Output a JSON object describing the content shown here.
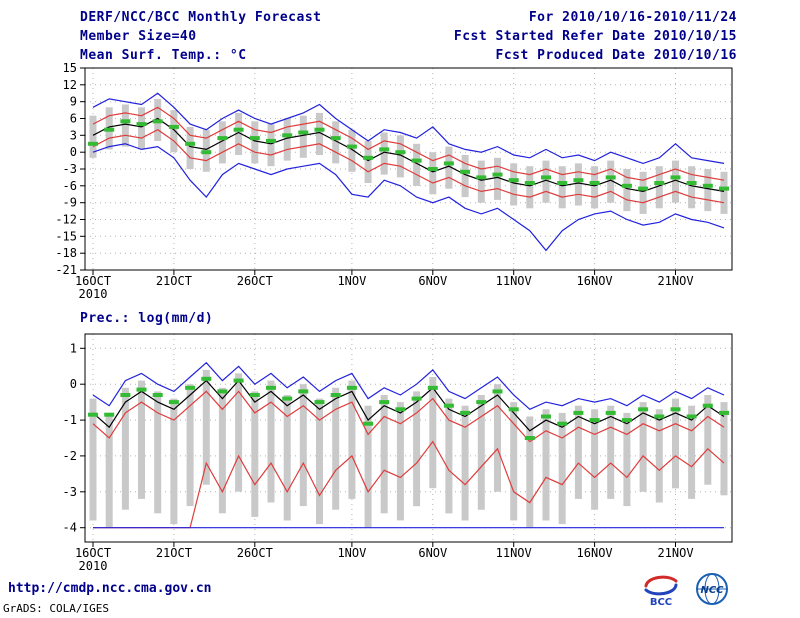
{
  "header": {
    "title": "DERF/NCC/BCC Monthly Forecast",
    "member_size": "Member Size=40",
    "for_range": "For 2010/10/16-2010/11/24",
    "fcst_started": "Fcst Started Refer Date 2010/10/15",
    "fcst_produced": "Fcst Produced Date 2010/10/16"
  },
  "footer": {
    "url": "http://cmdp.ncc.cma.gov.cn",
    "credit": "GrADS: COLA/IGES",
    "logo_bcc": "BCC",
    "logo_ncc": "NCC"
  },
  "colors": {
    "text": "#00008b",
    "frame": "#000000",
    "grid": "#b3b3b3",
    "bar": "#c9c9c9",
    "blue": "#2222dd",
    "red": "#e03c3c",
    "black": "#000000",
    "green": "#33bb33"
  },
  "chart_data": [
    {
      "type": "line",
      "title": "Mean Surf. Temp.: °C",
      "n_points": 40,
      "ylim": [
        -21,
        15
      ],
      "yticks": [
        15,
        12,
        9,
        6,
        3,
        0,
        -3,
        -6,
        -9,
        -12,
        -15,
        -18,
        -21
      ],
      "x_tick_labels": [
        "16OCT",
        "21OCT",
        "26OCT",
        "1NOV",
        "6NOV",
        "11NOV",
        "16NOV",
        "21NOV"
      ],
      "x_tick_indices": [
        0,
        5,
        10,
        16,
        21,
        26,
        31,
        36
      ],
      "x_year_label": "2010",
      "grid": true,
      "series": [
        {
          "name": "ensemble-max",
          "color": "#2222dd",
          "values": [
            8.0,
            9.5,
            9.0,
            8.5,
            10.5,
            8.0,
            5.0,
            4.0,
            6.0,
            7.5,
            6.0,
            5.0,
            6.0,
            7.0,
            8.5,
            6.0,
            4.0,
            2.0,
            4.0,
            3.5,
            2.5,
            4.5,
            1.5,
            0.5,
            0.0,
            1.0,
            -0.5,
            -1.0,
            0.5,
            -1.0,
            -0.5,
            -1.5,
            0.0,
            -1.0,
            -2.0,
            -1.0,
            1.5,
            -1.0,
            -1.5,
            -2.0
          ]
        },
        {
          "name": "upper-quartile",
          "color": "#e03c3c",
          "values": [
            5.0,
            6.5,
            7.0,
            6.5,
            8.0,
            6.0,
            3.0,
            2.5,
            4.0,
            5.5,
            4.0,
            3.5,
            4.5,
            5.0,
            5.5,
            4.0,
            2.5,
            0.5,
            2.0,
            1.5,
            0.0,
            -1.5,
            -0.5,
            -2.0,
            -3.0,
            -2.5,
            -3.5,
            -4.0,
            -3.0,
            -4.0,
            -3.5,
            -4.0,
            -3.0,
            -4.5,
            -5.0,
            -4.0,
            -3.0,
            -4.0,
            -4.5,
            -5.0
          ]
        },
        {
          "name": "ensemble-mean",
          "color": "#000000",
          "values": [
            3.0,
            4.5,
            5.0,
            4.5,
            6.0,
            4.0,
            1.0,
            0.5,
            2.0,
            3.5,
            2.0,
            1.5,
            2.5,
            3.0,
            3.5,
            2.0,
            0.5,
            -1.5,
            0.0,
            -0.5,
            -2.0,
            -3.5,
            -2.5,
            -4.0,
            -5.0,
            -4.5,
            -5.5,
            -6.0,
            -5.0,
            -6.0,
            -5.5,
            -6.0,
            -5.0,
            -6.5,
            -7.0,
            -6.0,
            -5.0,
            -6.0,
            -6.5,
            -7.0
          ]
        },
        {
          "name": "lower-quartile",
          "color": "#e03c3c",
          "values": [
            1.0,
            2.5,
            3.0,
            2.5,
            4.0,
            2.0,
            -1.0,
            -1.5,
            0.0,
            1.5,
            0.0,
            -0.5,
            0.5,
            1.0,
            1.5,
            0.0,
            -1.5,
            -3.5,
            -2.0,
            -2.5,
            -4.0,
            -5.5,
            -4.5,
            -6.0,
            -7.0,
            -6.5,
            -7.5,
            -8.0,
            -7.0,
            -8.0,
            -7.5,
            -8.0,
            -7.0,
            -8.5,
            -9.0,
            -8.0,
            -7.0,
            -8.0,
            -8.5,
            -9.0
          ]
        },
        {
          "name": "ensemble-min",
          "color": "#2222dd",
          "values": [
            0.0,
            1.0,
            1.5,
            0.5,
            1.0,
            -1.0,
            -5.0,
            -8.0,
            -4.0,
            -2.0,
            -3.0,
            -4.0,
            -3.0,
            -2.5,
            -2.0,
            -4.0,
            -7.5,
            -8.0,
            -5.0,
            -6.0,
            -8.0,
            -9.0,
            -8.0,
            -10.0,
            -11.0,
            -10.0,
            -12.0,
            -14.0,
            -17.5,
            -14.0,
            -12.0,
            -11.0,
            -10.5,
            -12.0,
            -13.0,
            -12.5,
            -11.0,
            -12.0,
            -12.5,
            -13.5
          ]
        }
      ],
      "bars": {
        "name": "ensemble-spread",
        "color": "#c9c9c9",
        "top": [
          6.5,
          8.0,
          8.5,
          8.0,
          9.5,
          7.5,
          4.5,
          4.0,
          5.5,
          7.0,
          5.5,
          5.0,
          6.0,
          6.5,
          7.0,
          5.5,
          4.0,
          2.0,
          3.5,
          3.0,
          1.5,
          0.0,
          1.0,
          -0.5,
          -1.5,
          -1.0,
          -2.0,
          -2.5,
          -1.5,
          -2.5,
          -2.0,
          -2.5,
          -1.5,
          -3.0,
          -3.5,
          -2.5,
          -1.5,
          -2.5,
          -3.0,
          -3.5
        ],
        "bottom": [
          -1.0,
          0.5,
          1.0,
          0.5,
          2.0,
          0.0,
          -3.0,
          -3.5,
          -2.0,
          -0.5,
          -2.0,
          -2.5,
          -1.5,
          -1.0,
          -0.5,
          -2.0,
          -3.5,
          -5.5,
          -4.0,
          -4.5,
          -6.0,
          -7.5,
          -6.5,
          -8.0,
          -9.0,
          -8.5,
          -9.5,
          -10.0,
          -9.0,
          -10.0,
          -9.5,
          -10.0,
          -9.0,
          -10.5,
          -11.0,
          -10.0,
          -9.0,
          -10.0,
          -10.5,
          -11.0
        ]
      },
      "obs": {
        "name": "observation",
        "color": "#33bb33",
        "values": [
          1.5,
          4.0,
          5.5,
          5.0,
          5.5,
          4.5,
          1.5,
          0.0,
          2.5,
          4.0,
          2.5,
          2.0,
          3.0,
          3.5,
          4.0,
          2.5,
          1.0,
          -1.0,
          0.5,
          0.0,
          -1.5,
          -3.0,
          -2.0,
          -3.5,
          -4.5,
          -4.0,
          -5.0,
          -5.5,
          -4.5,
          -5.5,
          -5.0,
          -5.5,
          -4.5,
          -6.0,
          -6.5,
          -5.5,
          -4.5,
          -5.5,
          -6.0,
          -6.5
        ]
      }
    },
    {
      "type": "line",
      "title": "Prec.: log(mm/d)",
      "n_points": 40,
      "ylim": [
        -4.4,
        1.4
      ],
      "yticks": [
        1,
        0,
        -1,
        -2,
        -3,
        -4
      ],
      "x_tick_labels": [
        "16OCT",
        "21OCT",
        "26OCT",
        "1NOV",
        "6NOV",
        "11NOV",
        "16NOV",
        "21NOV"
      ],
      "x_tick_indices": [
        0,
        5,
        10,
        16,
        21,
        26,
        31,
        36
      ],
      "x_year_label": "2010",
      "grid": true,
      "series": [
        {
          "name": "ensemble-max",
          "color": "#2222dd",
          "values": [
            -0.3,
            -0.6,
            0.1,
            0.3,
            0.0,
            -0.2,
            0.2,
            0.6,
            0.1,
            0.5,
            0.0,
            0.3,
            -0.1,
            0.2,
            -0.2,
            0.1,
            0.3,
            -0.4,
            -0.1,
            -0.3,
            0.0,
            0.4,
            -0.2,
            -0.4,
            -0.1,
            0.2,
            -0.3,
            -0.7,
            -0.5,
            -0.6,
            -0.4,
            -0.5,
            -0.4,
            -0.6,
            -0.3,
            -0.5,
            -0.2,
            -0.4,
            -0.1,
            -0.3
          ]
        },
        {
          "name": "ensemble-mean",
          "color": "#000000",
          "values": [
            -0.8,
            -1.2,
            -0.5,
            -0.2,
            -0.5,
            -0.7,
            -0.3,
            0.1,
            -0.4,
            0.1,
            -0.5,
            -0.2,
            -0.6,
            -0.3,
            -0.7,
            -0.4,
            -0.2,
            -1.0,
            -0.6,
            -0.8,
            -0.5,
            -0.1,
            -0.7,
            -0.9,
            -0.6,
            -0.3,
            -0.8,
            -1.3,
            -1.0,
            -1.2,
            -0.9,
            -1.1,
            -0.9,
            -1.1,
            -0.8,
            -1.0,
            -0.8,
            -1.0,
            -0.6,
            -0.9
          ]
        },
        {
          "name": "upper-quartile",
          "color": "#e03c3c",
          "values": [
            -1.1,
            -1.5,
            -0.8,
            -0.5,
            -0.8,
            -1.0,
            -0.6,
            -0.2,
            -0.7,
            -0.2,
            -0.8,
            -0.5,
            -0.9,
            -0.6,
            -1.0,
            -0.7,
            -0.5,
            -1.4,
            -0.9,
            -1.1,
            -0.8,
            -0.4,
            -1.0,
            -1.2,
            -0.9,
            -0.6,
            -1.1,
            -1.6,
            -1.3,
            -1.5,
            -1.2,
            -1.4,
            -1.2,
            -1.4,
            -1.1,
            -1.3,
            -1.1,
            -1.3,
            -0.9,
            -1.2
          ]
        },
        {
          "name": "lower-quartile",
          "color": "#e03c3c",
          "values": [
            -4.0,
            -4.0,
            -4.0,
            -4.0,
            -4.0,
            -4.0,
            -4.0,
            -2.2,
            -3.0,
            -2.0,
            -2.8,
            -2.2,
            -3.0,
            -2.2,
            -3.1,
            -2.4,
            -2.0,
            -3.0,
            -2.4,
            -2.6,
            -2.2,
            -1.6,
            -2.4,
            -2.8,
            -2.3,
            -1.8,
            -3.0,
            -3.3,
            -2.6,
            -2.8,
            -2.2,
            -2.6,
            -2.2,
            -2.6,
            -2.0,
            -2.4,
            -2.0,
            -2.3,
            -1.8,
            -2.2
          ]
        },
        {
          "name": "ensemble-min",
          "color": "#2222dd",
          "values": [
            -4.0,
            -4.0,
            -4.0,
            -4.0,
            -4.0,
            -4.0,
            -4.0,
            -4.0,
            -4.0,
            -4.0,
            -4.0,
            -4.0,
            -4.0,
            -4.0,
            -4.0,
            -4.0,
            -4.0,
            -4.0,
            -4.0,
            -4.0,
            -4.0,
            -4.0,
            -4.0,
            -4.0,
            -4.0,
            -4.0,
            -4.0,
            -4.0,
            -4.0,
            -4.0,
            -4.0,
            -4.0,
            -4.0,
            -4.0,
            -4.0,
            -4.0,
            -4.0,
            -4.0,
            -4.0,
            -4.0
          ]
        }
      ],
      "bars": {
        "name": "ensemble-spread",
        "color": "#c9c9c9",
        "top": [
          -0.4,
          -0.8,
          -0.1,
          0.1,
          -0.2,
          -0.4,
          0.0,
          0.4,
          -0.1,
          0.3,
          -0.2,
          0.1,
          -0.3,
          0.0,
          -0.4,
          -0.1,
          0.1,
          -0.6,
          -0.3,
          -0.5,
          -0.2,
          0.2,
          -0.4,
          -0.6,
          -0.3,
          0.0,
          -0.5,
          -0.9,
          -0.7,
          -0.8,
          -0.6,
          -0.7,
          -0.6,
          -0.8,
          -0.5,
          -0.7,
          -0.4,
          -0.6,
          -0.3,
          -0.5
        ],
        "bottom": [
          -3.8,
          -4.0,
          -3.5,
          -3.2,
          -3.6,
          -3.9,
          -3.4,
          -2.8,
          -3.6,
          -3.0,
          -3.7,
          -3.3,
          -3.8,
          -3.4,
          -3.9,
          -3.5,
          -3.2,
          -4.0,
          -3.6,
          -3.8,
          -3.4,
          -2.9,
          -3.6,
          -3.8,
          -3.5,
          -3.0,
          -3.8,
          -4.0,
          -3.8,
          -3.9,
          -3.2,
          -3.5,
          -3.2,
          -3.4,
          -3.0,
          -3.3,
          -2.9,
          -3.2,
          -2.8,
          -3.1
        ]
      },
      "obs": {
        "name": "observation",
        "color": "#33bb33",
        "values": [
          -0.85,
          -0.85,
          -0.3,
          -0.15,
          -0.3,
          -0.5,
          -0.1,
          0.15,
          -0.2,
          0.1,
          -0.3,
          -0.1,
          -0.4,
          -0.2,
          -0.5,
          -0.3,
          -0.1,
          -1.1,
          -0.5,
          -0.7,
          -0.4,
          -0.1,
          -0.6,
          -0.8,
          -0.5,
          -0.2,
          -0.7,
          -1.5,
          -0.9,
          -1.1,
          -0.8,
          -1.0,
          -0.8,
          -1.0,
          -0.7,
          -0.9,
          -0.7,
          -0.9,
          -0.6,
          -0.8
        ]
      }
    }
  ]
}
